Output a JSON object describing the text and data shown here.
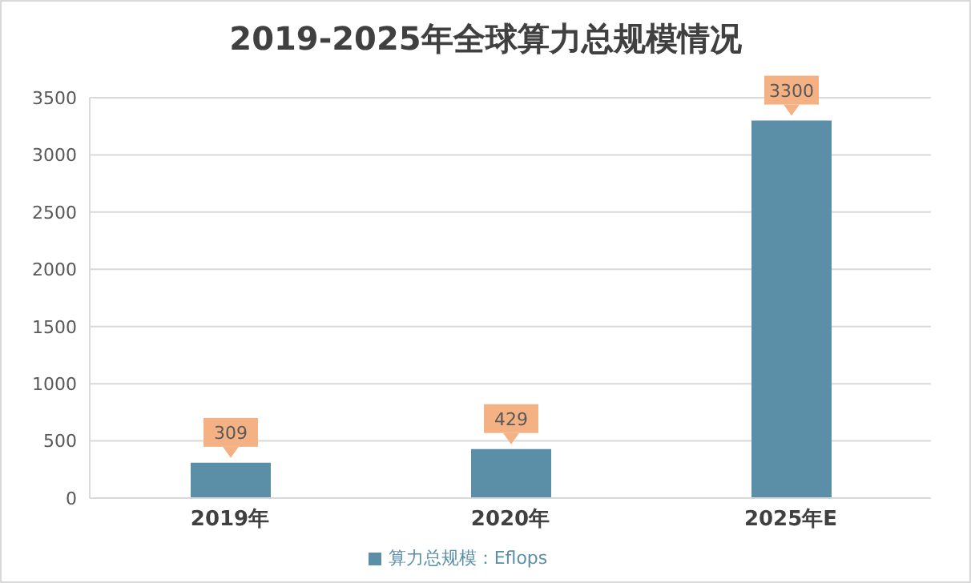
{
  "chart_data": {
    "type": "bar",
    "title": "2019-2025年全球算力总规模情况",
    "categories": [
      "2019年",
      "2020年",
      "2025年E"
    ],
    "series": [
      {
        "name": "算力总规模：Eflops",
        "color": "#5b8fa8",
        "values": [
          309,
          429,
          3300
        ]
      }
    ],
    "ylim": [
      0,
      3500
    ],
    "yticks": [
      0,
      500,
      1000,
      1500,
      2000,
      2500,
      3000,
      3500
    ],
    "grid": "y",
    "legend": "bottom",
    "data_labels": true
  }
}
